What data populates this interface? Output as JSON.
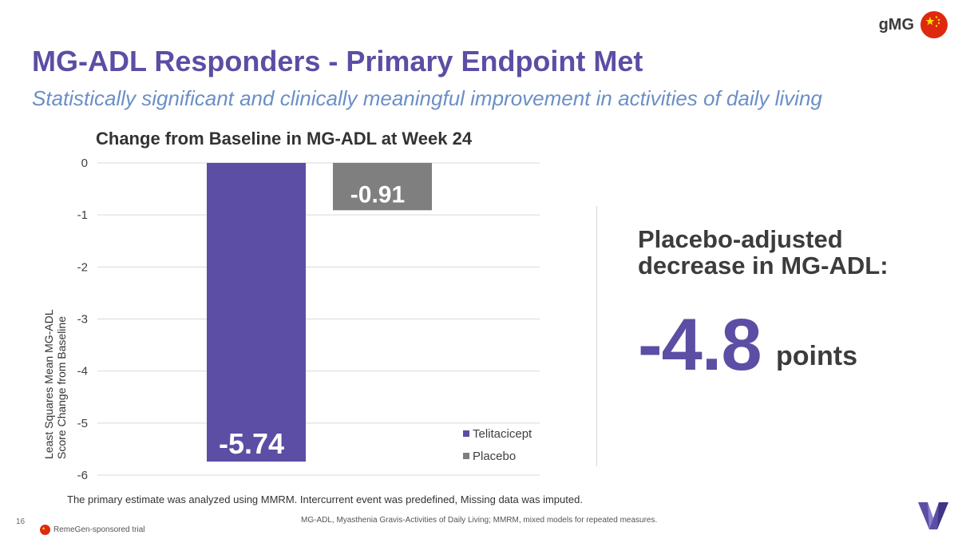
{
  "header": {
    "tag": "gMG",
    "title": "MG-ADL Responders - Primary Endpoint Met",
    "subtitle": "Statistically significant and clinically meaningful improvement in activities of daily living"
  },
  "chart_data": {
    "type": "bar",
    "title": "Change from Baseline in MG-ADL at Week 24",
    "ylabel": "Least Squares Mean MG-ADL Score Change from Baseline",
    "ylabel_lines": [
      "Least Squares Mean MG-ADL",
      "Score Change from Baseline"
    ],
    "xlabel": "",
    "ylim": [
      -6,
      0
    ],
    "yticks": [
      0,
      -1,
      -2,
      -3,
      -4,
      -5,
      -6
    ],
    "ytick_labels": [
      "0",
      "-1",
      "-2",
      "-3",
      "-4",
      "-5",
      "-6"
    ],
    "grid": true,
    "legend_position": "bottom-right",
    "series": [
      {
        "name": "Telitacicept",
        "value": -5.74,
        "label": "-5.74",
        "color": "#5b4ea4"
      },
      {
        "name": "Placebo",
        "value": -0.91,
        "label": "-0.91",
        "color": "#7f7f7f"
      }
    ]
  },
  "callout": {
    "heading": "Placebo-adjusted decrease in MG-ADL:",
    "value": "-4.8",
    "unit": "points"
  },
  "footer": {
    "method_note": "The primary estimate was analyzed using MMRM. Intercurrent event was predefined, Missing data was imputed.",
    "page_number": "16",
    "abbreviations": "MG-ADL, Myasthenia Gravis-Activities of Daily Living; MMRM, mixed models for repeated measures.",
    "sponsor_note": "RemeGen-sponsored trial"
  },
  "icons": {
    "flag": "china-flag-icon",
    "logo": "company-logo-icon"
  },
  "colors": {
    "accent": "#5b4ea4",
    "placebo": "#7f7f7f",
    "subtitle": "#6b8fc6"
  }
}
